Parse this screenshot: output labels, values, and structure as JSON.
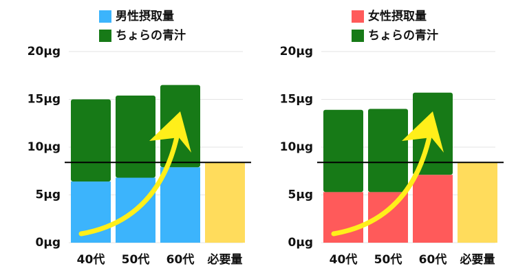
{
  "chart_data": [
    {
      "type": "bar",
      "stacked": true,
      "categories": [
        "40代",
        "50代",
        "60代",
        "必要量"
      ],
      "series": [
        {
          "name": "男性摂取量",
          "color": "#3cb4fc",
          "values": [
            6.4,
            6.8,
            7.9,
            null
          ]
        },
        {
          "name": "ちょらの青汁",
          "color": "#177a17",
          "values": [
            8.6,
            8.6,
            8.6,
            null
          ]
        }
      ],
      "required_value": 8.4,
      "required_color": "#ffdc5c",
      "ylim": [
        0,
        20
      ],
      "yticks": [
        {
          "value": 0,
          "label": "0μg"
        },
        {
          "value": 5,
          "label": "5μg"
        },
        {
          "value": 10,
          "label": "10μg"
        },
        {
          "value": 15,
          "label": "15μg"
        },
        {
          "value": 20,
          "label": "20μg"
        }
      ],
      "grid": true
    },
    {
      "type": "bar",
      "stacked": true,
      "categories": [
        "40代",
        "50代",
        "60代",
        "必要量"
      ],
      "series": [
        {
          "name": "女性摂取量",
          "color": "#ff5a5a",
          "values": [
            5.3,
            5.3,
            7.1,
            null
          ]
        },
        {
          "name": "ちょらの青汁",
          "color": "#177a17",
          "values": [
            8.6,
            8.7,
            8.6,
            null
          ]
        }
      ],
      "required_value": 8.4,
      "required_color": "#ffdc5c",
      "ylim": [
        0,
        20
      ],
      "yticks": [
        {
          "value": 0,
          "label": "0μg"
        },
        {
          "value": 5,
          "label": "5μg"
        },
        {
          "value": 10,
          "label": "10μg"
        },
        {
          "value": 15,
          "label": "15μg"
        },
        {
          "value": 20,
          "label": "20μg"
        }
      ],
      "grid": true
    }
  ]
}
